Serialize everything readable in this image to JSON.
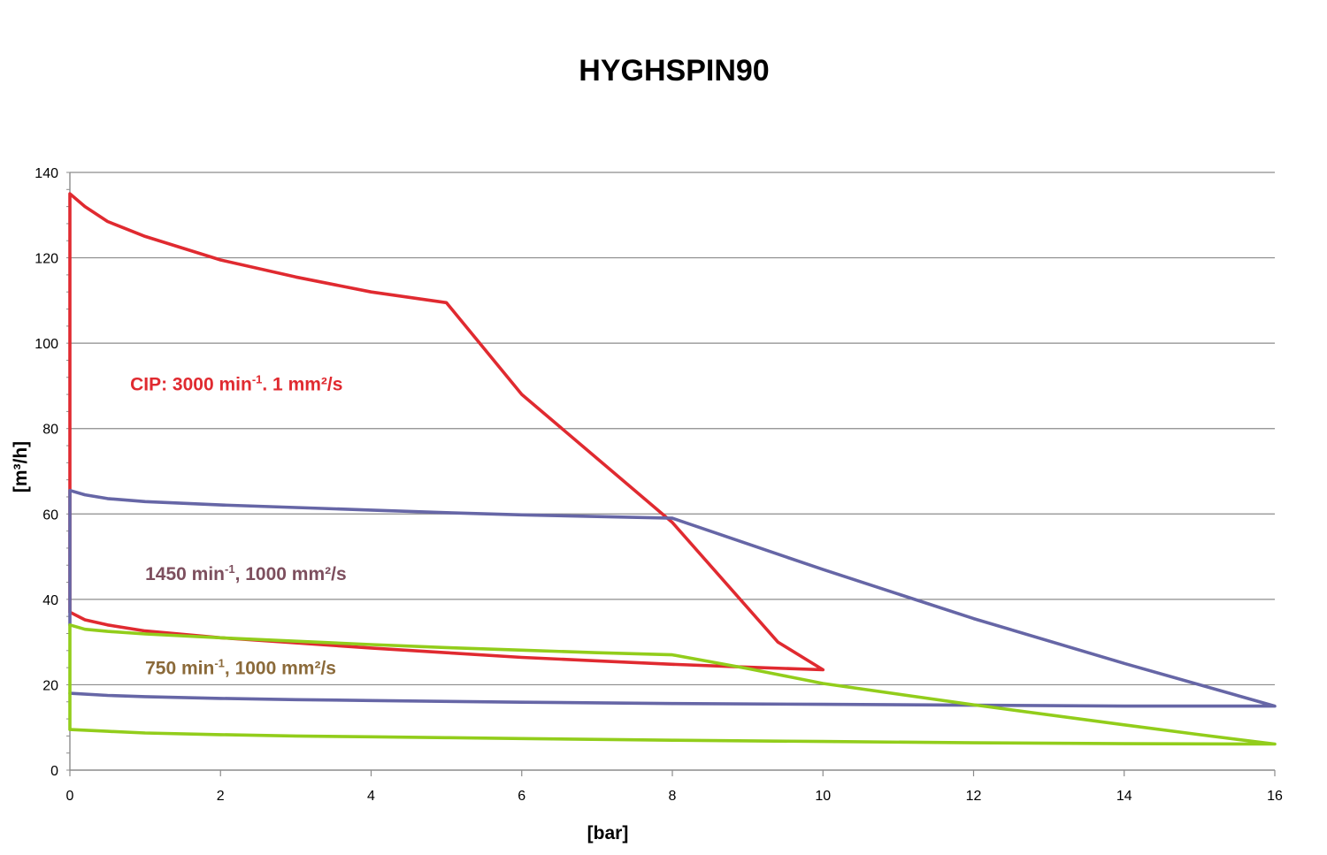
{
  "chart_data": {
    "type": "line",
    "title": "HYGHSPIN90",
    "xlabel": "[bar]",
    "ylabel": "[m³/h]",
    "xlim": [
      0,
      16
    ],
    "ylim": [
      0,
      140
    ],
    "xticks": [
      0,
      2,
      4,
      6,
      8,
      10,
      12,
      14,
      16
    ],
    "yticks": [
      0,
      20,
      40,
      60,
      80,
      100,
      120,
      140
    ],
    "grid": "horizontal",
    "series": [
      {
        "color": "#e02a30",
        "points": [
          [
            0,
            37
          ],
          [
            0.2,
            35.2
          ],
          [
            0.5,
            34
          ],
          [
            1,
            32.6
          ],
          [
            2,
            31
          ],
          [
            3,
            29.8
          ],
          [
            4,
            28.6
          ],
          [
            5,
            27.5
          ],
          [
            6,
            26.4
          ],
          [
            7,
            25.6
          ],
          [
            8,
            24.8
          ],
          [
            9,
            24.1
          ],
          [
            10,
            23.5
          ],
          [
            9.4,
            30
          ],
          [
            8,
            58
          ],
          [
            6,
            88
          ],
          [
            5,
            109.5
          ],
          [
            4,
            112
          ],
          [
            3,
            115.5
          ],
          [
            2,
            119.5
          ],
          [
            1,
            125
          ],
          [
            0.5,
            128.5
          ],
          [
            0.2,
            132
          ],
          [
            0,
            135
          ],
          [
            0,
            37
          ]
        ]
      },
      {
        "color": "#6666a6",
        "points": [
          [
            0,
            18
          ],
          [
            0.5,
            17.5
          ],
          [
            1,
            17.2
          ],
          [
            2,
            16.8
          ],
          [
            3,
            16.5
          ],
          [
            4,
            16.3
          ],
          [
            6,
            15.9
          ],
          [
            8,
            15.6
          ],
          [
            10,
            15.4
          ],
          [
            12,
            15.2
          ],
          [
            14,
            15
          ],
          [
            16,
            15
          ],
          [
            14,
            25
          ],
          [
            12,
            35.5
          ],
          [
            10,
            47
          ],
          [
            9,
            53
          ],
          [
            8,
            59
          ],
          [
            7,
            59.4
          ],
          [
            6,
            59.8
          ],
          [
            5,
            60.3
          ],
          [
            4,
            60.9
          ],
          [
            3,
            61.5
          ],
          [
            2,
            62.1
          ],
          [
            1,
            62.9
          ],
          [
            0.5,
            63.6
          ],
          [
            0.2,
            64.5
          ],
          [
            0,
            65.5
          ],
          [
            0,
            34
          ]
        ]
      },
      {
        "color": "#92cd1b",
        "points": [
          [
            0,
            9.5
          ],
          [
            0.5,
            9.1
          ],
          [
            1,
            8.7
          ],
          [
            2,
            8.3
          ],
          [
            3,
            8
          ],
          [
            4,
            7.8
          ],
          [
            5,
            7.6
          ],
          [
            6,
            7.4
          ],
          [
            8,
            7
          ],
          [
            10,
            6.7
          ],
          [
            12,
            6.4
          ],
          [
            14,
            6.2
          ],
          [
            16,
            6.1
          ],
          [
            15,
            8.3
          ],
          [
            14,
            10.6
          ],
          [
            12,
            15.3
          ],
          [
            10,
            20.3
          ],
          [
            9,
            23.8
          ],
          [
            8,
            27
          ],
          [
            7,
            27.5
          ],
          [
            6,
            28.1
          ],
          [
            5,
            28.7
          ],
          [
            4,
            29.4
          ],
          [
            3,
            30.2
          ],
          [
            2,
            31
          ],
          [
            1,
            31.9
          ],
          [
            0.5,
            32.5
          ],
          [
            0.2,
            33
          ],
          [
            0,
            34
          ],
          [
            0,
            9.5
          ]
        ]
      }
    ],
    "annotations": [
      {
        "text": "CIP: 3000 min",
        "sup": "-1",
        "tail": ". 1 mm²/s",
        "color": "#e02a30",
        "x": 0.8,
        "y": 89
      },
      {
        "text": "1450 min",
        "sup": "-1",
        "tail": ", 1000 mm²/s",
        "color": "#7d4f5e",
        "x": 1.0,
        "y": 44.5
      },
      {
        "text": "750 min",
        "sup": "-1",
        "tail": ", 1000 mm²/s",
        "color": "#8b6a3a",
        "x": 1.0,
        "y": 22.5
      }
    ]
  },
  "colors": {
    "grid": "#8c8c8c",
    "axis": "#8c8c8c",
    "text": "#000000"
  }
}
